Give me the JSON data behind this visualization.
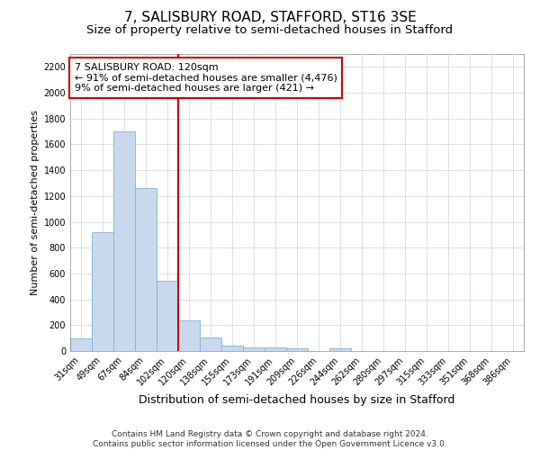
{
  "title_line1": "7, SALISBURY ROAD, STAFFORD, ST16 3SE",
  "title_line2": "Size of property relative to semi-detached houses in Stafford",
  "xlabel": "Distribution of semi-detached houses by size in Stafford",
  "ylabel": "Number of semi-detached properties",
  "categories": [
    "31sqm",
    "49sqm",
    "67sqm",
    "84sqm",
    "102sqm",
    "120sqm",
    "138sqm",
    "155sqm",
    "173sqm",
    "191sqm",
    "209sqm",
    "226sqm",
    "244sqm",
    "262sqm",
    "280sqm",
    "297sqm",
    "315sqm",
    "333sqm",
    "351sqm",
    "368sqm",
    "386sqm"
  ],
  "values": [
    100,
    920,
    1700,
    1260,
    545,
    235,
    105,
    45,
    30,
    25,
    20,
    0,
    20,
    0,
    0,
    0,
    0,
    0,
    0,
    0,
    0
  ],
  "bar_color": "#c8d9ee",
  "bar_edge_color": "#7bafd4",
  "vline_x_index": 5,
  "vline_color": "#cc0000",
  "annotation_text": "7 SALISBURY ROAD: 120sqm\n← 91% of semi-detached houses are smaller (4,476)\n9% of semi-detached houses are larger (421) →",
  "annotation_box_color": "#ffffff",
  "annotation_box_edge_color": "#cc0000",
  "ylim": [
    0,
    2300
  ],
  "yticks": [
    0,
    200,
    400,
    600,
    800,
    1000,
    1200,
    1400,
    1600,
    1800,
    2000,
    2200
  ],
  "footer_line1": "Contains HM Land Registry data © Crown copyright and database right 2024.",
  "footer_line2": "Contains public sector information licensed under the Open Government Licence v3.0.",
  "bg_color": "#ffffff",
  "grid_color": "#c8d4e8",
  "title1_fontsize": 11,
  "title2_fontsize": 9.5,
  "xlabel_fontsize": 9,
  "ylabel_fontsize": 8,
  "tick_fontsize": 7,
  "footer_fontsize": 6.5,
  "annotation_fontsize": 8
}
